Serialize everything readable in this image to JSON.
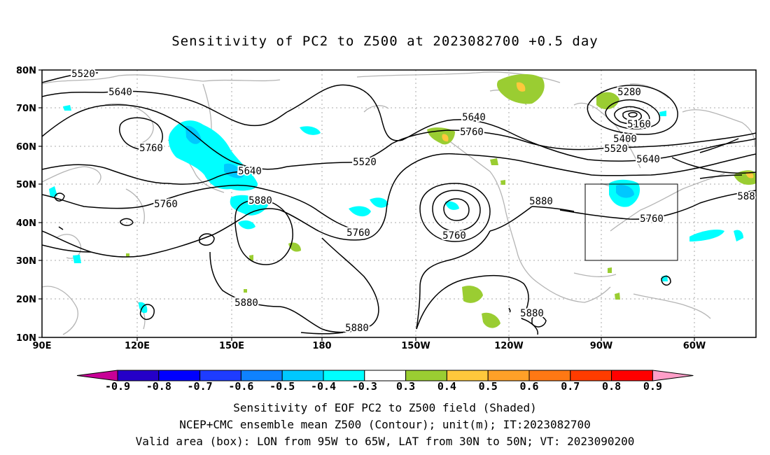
{
  "title": "Sensitivity of PC2 to Z500 at 2023082700 +0.5 day",
  "lon_ticks": [
    "90E",
    "120E",
    "150E",
    "180",
    "150W",
    "120W",
    "90W",
    "60W"
  ],
  "lat_ticks": [
    "80N",
    "70N",
    "60N",
    "50N",
    "40N",
    "30N",
    "20N",
    "10N"
  ],
  "contour_labels": [
    "5520",
    "5640",
    "5760",
    "5640",
    "5880",
    "5520",
    "5640",
    "5760",
    "5760",
    "5760",
    "5880",
    "5880",
    "5280",
    "5160",
    "5400",
    "5520",
    "5640",
    "5760",
    "5880",
    "5880",
    "588"
  ],
  "colorbar": {
    "labels": [
      "-0.9",
      "-0.8",
      "-0.7",
      "-0.6",
      "-0.5",
      "-0.4",
      "-0.3",
      "0.3",
      "0.4",
      "0.5",
      "0.6",
      "0.7",
      "0.8",
      "0.9"
    ],
    "colors": [
      "#2500c8",
      "#0000ff",
      "#1e3cff",
      "#0f82ff",
      "#00c8ff",
      "#00ffff",
      "#ffffff",
      "#9acd32",
      "#ffc83c",
      "#ffa028",
      "#ff7814",
      "#ff3c00",
      "#ff0000"
    ],
    "left_arrow_color": "#c80096",
    "right_arrow_color": "#ff9ec8"
  },
  "box": {
    "lon_from": "95W",
    "lon_to": "65W",
    "lat_from": "30N",
    "lat_to": "50N"
  },
  "footer": {
    "line1": "Sensitivity of EOF PC2 to Z500 field (Shaded)",
    "line2": "NCEP+CMC ensemble mean Z500 (Contour); unit(m); IT:2023082700",
    "line3": "Valid area (box): LON from 95W to 65W, LAT from 30N to 50N; VT: 2023090200"
  }
}
